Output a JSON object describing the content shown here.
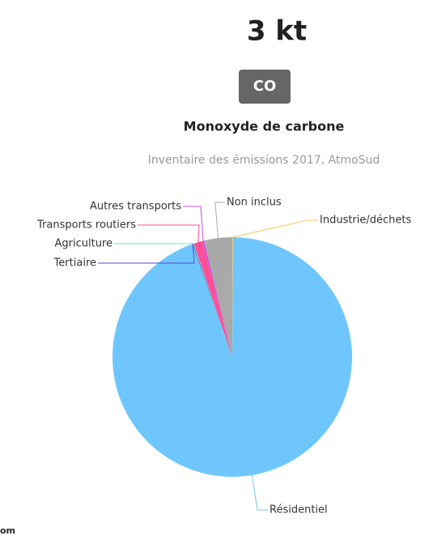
{
  "header": {
    "value": "3 kt",
    "badge": "CO",
    "name": "Monoxyde de carbone",
    "footer": "om"
  },
  "chart_data": {
    "type": "pie",
    "subtitle": "Inventaire des émissions 2017, AtmoSud",
    "categories": [
      "Industrie/déchets",
      "Résidentiel",
      "Tertiaire",
      "Agriculture",
      "Transports routiers",
      "Autres transports",
      "Non inclus"
    ],
    "values": [
      0.1,
      94.5,
      0.1,
      0.1,
      1.2,
      0.2,
      3.8
    ],
    "colors": [
      "#f9c85c",
      "#6fc6fd",
      "#4b4bdc",
      "#6ee8a8",
      "#ff4f9a",
      "#c84ce0",
      "#a9a9a9"
    ]
  }
}
